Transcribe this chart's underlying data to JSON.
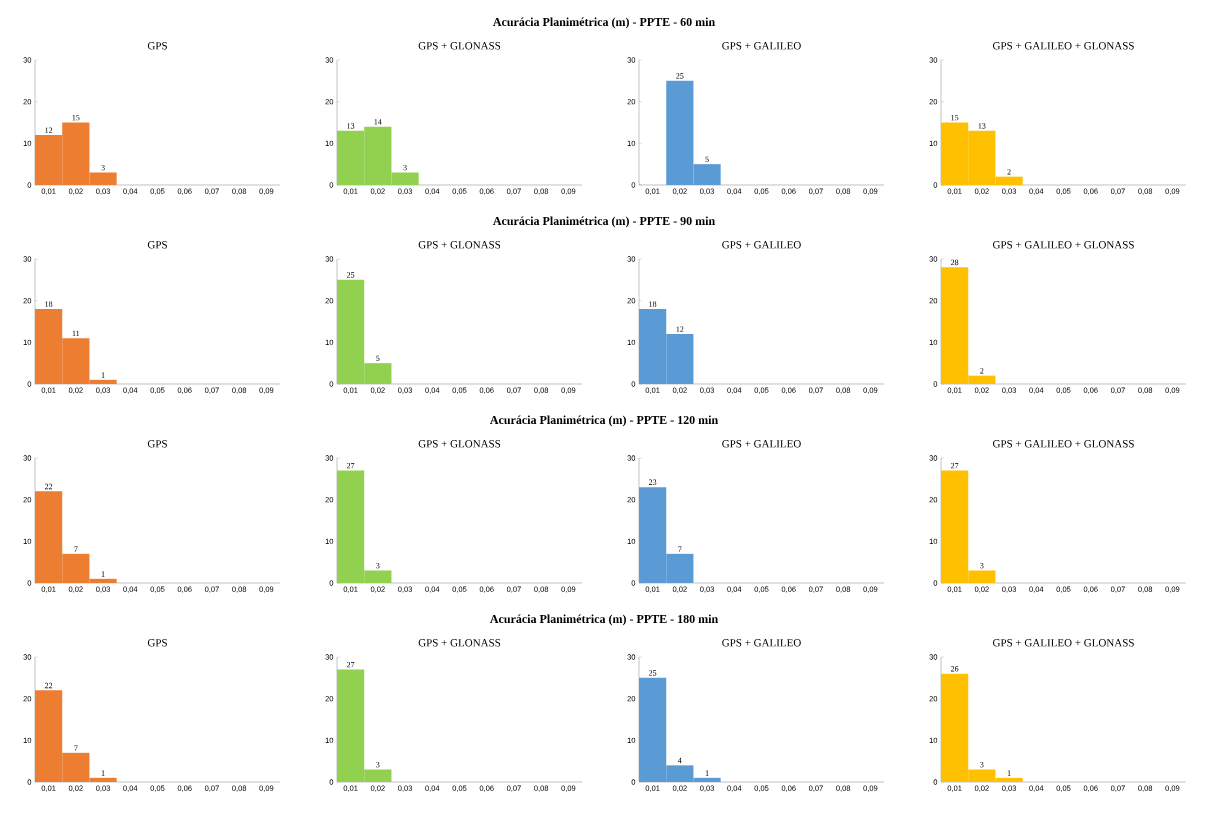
{
  "chart_data": [
    {
      "type": "bar",
      "annotations": [
        "Acurácia Planimétrica (m) - PPTE - 60 min"
      ],
      "title": "GPS",
      "categories": [
        "0,01",
        "0,02",
        "0,03",
        "0,04",
        "0,05",
        "0,06",
        "0,07",
        "0,08",
        "0,09"
      ],
      "values": [
        12,
        15,
        3,
        0,
        0,
        0,
        0,
        0,
        0
      ],
      "value_labels": [
        "12",
        "15",
        "3",
        null,
        null,
        null,
        null,
        null,
        null
      ],
      "color": "#ed7d31",
      "ylim": [
        0,
        30
      ],
      "yticks": [
        0,
        10,
        20,
        30
      ]
    },
    {
      "type": "bar",
      "title": "GPS + GLONASS",
      "categories": [
        "0,01",
        "0,02",
        "0,03",
        "0,04",
        "0,05",
        "0,06",
        "0,07",
        "0,08",
        "0,09"
      ],
      "values": [
        13,
        14,
        3,
        0,
        0,
        0,
        0,
        0,
        0
      ],
      "value_labels": [
        "13",
        "14",
        "3",
        null,
        null,
        null,
        null,
        null,
        null
      ],
      "color": "#92d050",
      "ylim": [
        0,
        30
      ],
      "yticks": [
        0,
        10,
        20,
        30
      ]
    },
    {
      "type": "bar",
      "title": "GPS + GALILEO",
      "categories": [
        "0,01",
        "0,02",
        "0,03",
        "0,04",
        "0,05",
        "0,06",
        "0,07",
        "0,08",
        "0,09"
      ],
      "values": [
        0,
        25,
        5,
        0,
        0,
        0,
        0,
        0,
        0
      ],
      "value_labels": [
        null,
        "25",
        "5",
        null,
        null,
        null,
        null,
        null,
        null
      ],
      "color": "#5b9bd5",
      "ylim": [
        0,
        30
      ],
      "yticks": [
        0,
        10,
        20,
        30
      ]
    },
    {
      "type": "bar",
      "title": "GPS + GALILEO + GLONASS",
      "categories": [
        "0,01",
        "0,02",
        "0,03",
        "0,04",
        "0,05",
        "0,06",
        "0,07",
        "0,08",
        "0,09"
      ],
      "values": [
        15,
        13,
        2,
        0,
        0,
        0,
        0,
        0,
        0
      ],
      "value_labels": [
        "15",
        "13",
        "2",
        null,
        null,
        null,
        null,
        null,
        null
      ],
      "color": "#ffc000",
      "ylim": [
        0,
        30
      ],
      "yticks": [
        0,
        10,
        20,
        30
      ]
    },
    {
      "type": "bar",
      "annotations": [
        "Acurácia Planimétrica (m) - PPTE - 90 min"
      ],
      "title": "GPS",
      "categories": [
        "0,01",
        "0,02",
        "0,03",
        "0,04",
        "0,05",
        "0,06",
        "0,07",
        "0,08",
        "0,09"
      ],
      "values": [
        18,
        11,
        1,
        0,
        0,
        0,
        0,
        0,
        0
      ],
      "value_labels": [
        "18",
        "11",
        "1",
        null,
        null,
        null,
        null,
        null,
        null
      ],
      "color": "#ed7d31",
      "ylim": [
        0,
        30
      ],
      "yticks": [
        0,
        10,
        20,
        30
      ]
    },
    {
      "type": "bar",
      "title": "GPS + GLONASS",
      "categories": [
        "0,01",
        "0,02",
        "0,03",
        "0,04",
        "0,05",
        "0,06",
        "0,07",
        "0,08",
        "0,09"
      ],
      "values": [
        25,
        5,
        0,
        0,
        0,
        0,
        0,
        0,
        0
      ],
      "value_labels": [
        "25",
        "5",
        null,
        null,
        null,
        null,
        null,
        null,
        null
      ],
      "color": "#92d050",
      "ylim": [
        0,
        30
      ],
      "yticks": [
        0,
        10,
        20,
        30
      ]
    },
    {
      "type": "bar",
      "title": "GPS + GALILEO",
      "categories": [
        "0,01",
        "0,02",
        "0,03",
        "0,04",
        "0,05",
        "0,06",
        "0,07",
        "0,08",
        "0,09"
      ],
      "values": [
        18,
        12,
        0,
        0,
        0,
        0,
        0,
        0,
        0
      ],
      "value_labels": [
        "18",
        "12",
        null,
        null,
        null,
        null,
        null,
        null,
        null
      ],
      "color": "#5b9bd5",
      "ylim": [
        0,
        30
      ],
      "yticks": [
        0,
        10,
        20,
        30
      ]
    },
    {
      "type": "bar",
      "title": "GPS + GALILEO + GLONASS",
      "categories": [
        "0,01",
        "0,02",
        "0,03",
        "0,04",
        "0,05",
        "0,06",
        "0,07",
        "0,08",
        "0,09"
      ],
      "values": [
        28,
        2,
        0,
        0,
        0,
        0,
        0,
        0,
        0
      ],
      "value_labels": [
        "28",
        "2",
        null,
        null,
        null,
        null,
        null,
        null,
        null
      ],
      "color": "#ffc000",
      "ylim": [
        0,
        30
      ],
      "yticks": [
        0,
        10,
        20,
        30
      ]
    },
    {
      "type": "bar",
      "annotations": [
        "Acurácia Planimétrica (m) - PPTE - 120 min"
      ],
      "title": "GPS",
      "categories": [
        "0,01",
        "0,02",
        "0,03",
        "0,04",
        "0,05",
        "0,06",
        "0,07",
        "0,08",
        "0,09"
      ],
      "values": [
        22,
        7,
        1,
        0,
        0,
        0,
        0,
        0,
        0
      ],
      "value_labels": [
        "22",
        "7",
        "1",
        null,
        null,
        null,
        null,
        null,
        null
      ],
      "color": "#ed7d31",
      "ylim": [
        0,
        30
      ],
      "yticks": [
        0,
        10,
        20,
        30
      ]
    },
    {
      "type": "bar",
      "title": "GPS + GLONASS",
      "categories": [
        "0,01",
        "0,02",
        "0,03",
        "0,04",
        "0,05",
        "0,06",
        "0,07",
        "0,08",
        "0,09"
      ],
      "values": [
        27,
        3,
        0,
        0,
        0,
        0,
        0,
        0,
        0
      ],
      "value_labels": [
        "27",
        "3",
        null,
        null,
        null,
        null,
        null,
        null,
        null
      ],
      "color": "#92d050",
      "ylim": [
        0,
        30
      ],
      "yticks": [
        0,
        10,
        20,
        30
      ]
    },
    {
      "type": "bar",
      "title": "GPS + GALILEO",
      "categories": [
        "0,01",
        "0,02",
        "0,03",
        "0,04",
        "0,05",
        "0,06",
        "0,07",
        "0,08",
        "0,09"
      ],
      "values": [
        23,
        7,
        0,
        0,
        0,
        0,
        0,
        0,
        0
      ],
      "value_labels": [
        "23",
        "7",
        null,
        null,
        null,
        null,
        null,
        null,
        null
      ],
      "color": "#5b9bd5",
      "ylim": [
        0,
        30
      ],
      "yticks": [
        0,
        10,
        20,
        30
      ]
    },
    {
      "type": "bar",
      "title": "GPS + GALILEO + GLONASS",
      "categories": [
        "0,01",
        "0,02",
        "0,03",
        "0,04",
        "0,05",
        "0,06",
        "0,07",
        "0,08",
        "0,09"
      ],
      "values": [
        27,
        3,
        0,
        0,
        0,
        0,
        0,
        0,
        0
      ],
      "value_labels": [
        "27",
        "3",
        null,
        null,
        null,
        null,
        null,
        null,
        null
      ],
      "color": "#ffc000",
      "ylim": [
        0,
        30
      ],
      "yticks": [
        0,
        10,
        20,
        30
      ]
    },
    {
      "type": "bar",
      "annotations": [
        "Acurácia Planimétrica (m) - PPTE - 180 min"
      ],
      "title": "GPS",
      "categories": [
        "0,01",
        "0,02",
        "0,03",
        "0,04",
        "0,05",
        "0,06",
        "0,07",
        "0,08",
        "0,09"
      ],
      "values": [
        22,
        7,
        1,
        0,
        0,
        0,
        0,
        0,
        0
      ],
      "value_labels": [
        "22",
        "7",
        "1",
        null,
        null,
        null,
        null,
        null,
        null
      ],
      "color": "#ed7d31",
      "ylim": [
        0,
        30
      ],
      "yticks": [
        0,
        10,
        20,
        30
      ]
    },
    {
      "type": "bar",
      "title": "GPS + GLONASS",
      "categories": [
        "0,01",
        "0,02",
        "0,03",
        "0,04",
        "0,05",
        "0,06",
        "0,07",
        "0,08",
        "0,09"
      ],
      "values": [
        27,
        3,
        0,
        0,
        0,
        0,
        0,
        0,
        0
      ],
      "value_labels": [
        "27",
        "3",
        null,
        null,
        null,
        null,
        null,
        null,
        null
      ],
      "color": "#92d050",
      "ylim": [
        0,
        30
      ],
      "yticks": [
        0,
        10,
        20,
        30
      ]
    },
    {
      "type": "bar",
      "title": "GPS + GALILEO",
      "categories": [
        "0,01",
        "0,02",
        "0,03",
        "0,04",
        "0,05",
        "0,06",
        "0,07",
        "0,08",
        "0,09"
      ],
      "values": [
        25,
        4,
        1,
        0,
        0,
        0,
        0,
        0,
        0
      ],
      "value_labels": [
        "25",
        "4",
        "1",
        null,
        null,
        null,
        null,
        null,
        null
      ],
      "color": "#5b9bd5",
      "ylim": [
        0,
        30
      ],
      "yticks": [
        0,
        10,
        20,
        30
      ]
    },
    {
      "type": "bar",
      "title": "GPS + GALILEO + GLONASS",
      "categories": [
        "0,01",
        "0,02",
        "0,03",
        "0,04",
        "0,05",
        "0,06",
        "0,07",
        "0,08",
        "0,09"
      ],
      "values": [
        26,
        3,
        1,
        0,
        0,
        0,
        0,
        0,
        0
      ],
      "value_labels": [
        "26",
        "3",
        "1",
        null,
        null,
        null,
        null,
        null,
        null
      ],
      "color": "#ffc000",
      "ylim": [
        0,
        30
      ],
      "yticks": [
        0,
        10,
        20,
        30
      ]
    }
  ]
}
